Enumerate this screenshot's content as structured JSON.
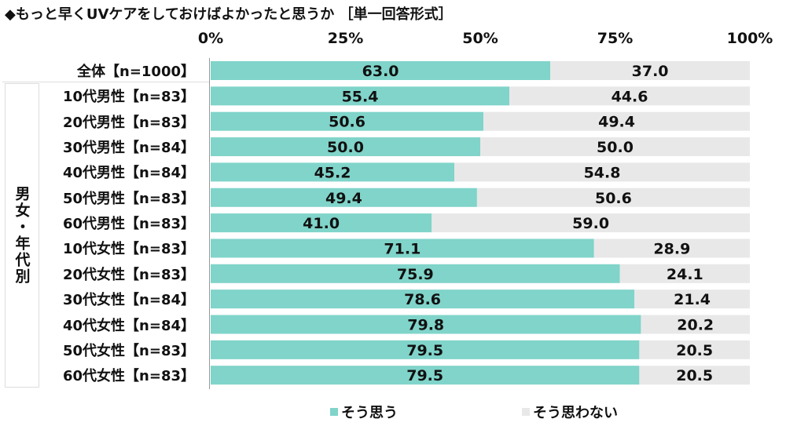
{
  "chart_data": {
    "type": "bar",
    "stacked": true,
    "orientation": "horizontal",
    "title": "◆もっと早くUVケアをしておけばよかったと思うか ［単一回答形式］",
    "group_label": "男女・年代別",
    "xlim": [
      0,
      100
    ],
    "x_ticks": [
      "0%",
      "25%",
      "50%",
      "75%",
      "100%"
    ],
    "categories": [
      "全体【n=1000】",
      "10代男性【n=83】",
      "20代男性【n=83】",
      "30代男性【n=84】",
      "40代男性【n=84】",
      "50代男性【n=83】",
      "60代男性【n=83】",
      "10代女性【n=83】",
      "20代女性【n=83】",
      "30代女性【n=84】",
      "40代女性【n=84】",
      "50代女性【n=83】",
      "60代女性【n=83】"
    ],
    "series": [
      {
        "name": "そう思う",
        "color": "#80d4ca",
        "values": [
          63.0,
          55.4,
          50.6,
          50.0,
          45.2,
          49.4,
          41.0,
          71.1,
          75.9,
          78.6,
          79.8,
          79.5,
          79.5
        ]
      },
      {
        "name": "そう思わない",
        "color": "#e8e8e8",
        "values": [
          37.0,
          44.6,
          49.4,
          50.0,
          54.8,
          50.6,
          59.0,
          28.9,
          24.1,
          21.4,
          20.2,
          20.5,
          20.5
        ]
      }
    ],
    "legend": "bottom"
  }
}
